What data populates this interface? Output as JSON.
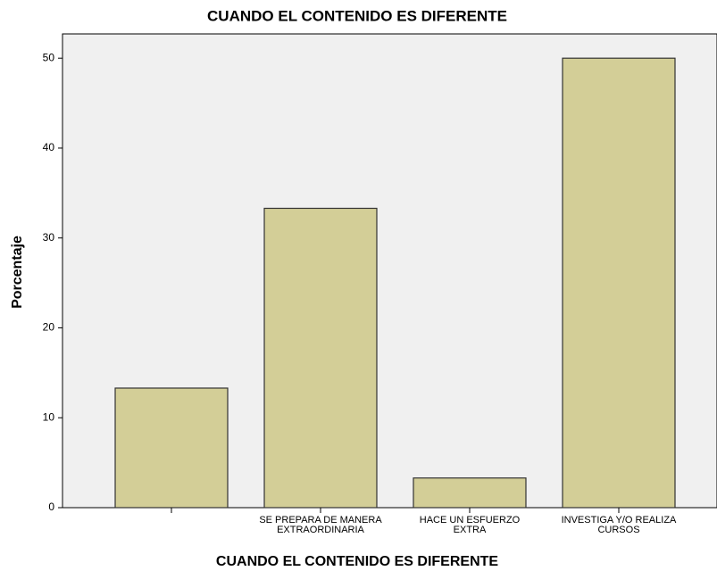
{
  "chart_data": {
    "type": "bar",
    "title": "CUANDO EL CONTENIDO ES DIFERENTE",
    "x_label": "CUANDO EL CONTENIDO ES DIFERENTE",
    "y_label": "Porcentaje",
    "categories": [
      null,
      "SE PREPARA DE MANERA\nEXTRAORDINARIA",
      "HACE UN ESFUERZO\nEXTRA",
      "INVESTIGA Y/O REALIZA\nCURSOS"
    ],
    "values": [
      13.3,
      33.3,
      3.3,
      50
    ],
    "color": "#d3ce97",
    "ylim": [
      0,
      52.7
    ],
    "yticks": [
      0,
      10,
      20,
      30,
      40,
      50
    ],
    "grid": false
  }
}
